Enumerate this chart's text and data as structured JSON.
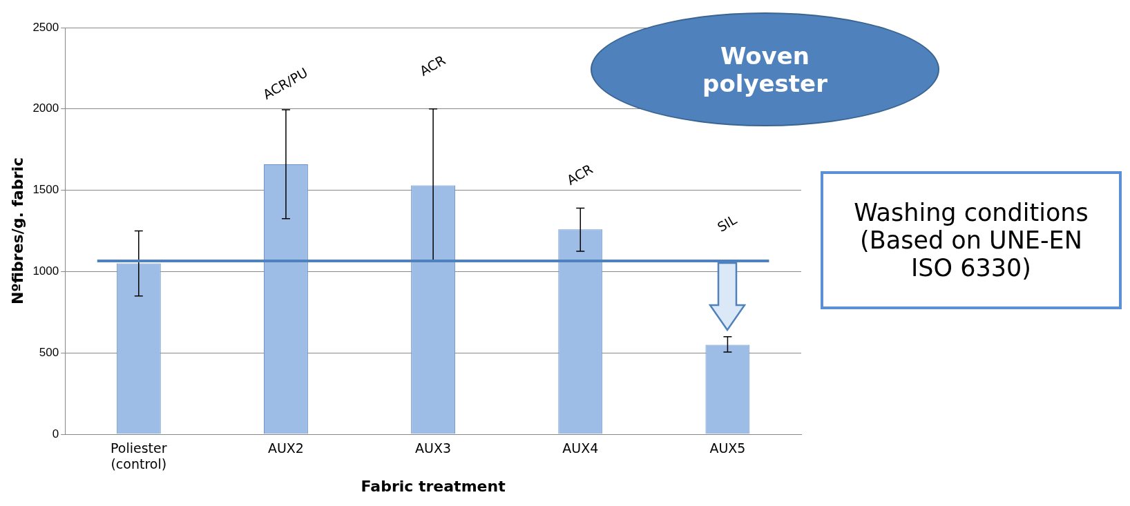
{
  "chart_data": {
    "type": "bar",
    "xlabel": "Fabric treatment",
    "ylabel": "Nºfibres/g. fabric",
    "categories": [
      "Poliester\n(control)",
      "AUX2",
      "AUX3",
      "AUX4",
      "AUX5"
    ],
    "values": [
      1050,
      1660,
      1530,
      1260,
      550
    ],
    "errors": [
      200,
      [
        1325,
        1995
      ],
      [
        1070,
        2000
      ],
      [
        1125,
        1390
      ],
      [
        505,
        600
      ]
    ],
    "color": "#9dbde6",
    "ylim": [
      0,
      2500
    ],
    "yticks": [
      0,
      500,
      1000,
      1500,
      2000,
      2500
    ],
    "grid": "y",
    "legend": false,
    "ref_lines": [
      {
        "axis": "y",
        "value": 1065,
        "color": "#4f81bd"
      }
    ],
    "annotations": [
      "ACR/PU",
      "ACR",
      "ACR",
      "SIL",
      "Woven\npolyester",
      "Washing conditions\n(Based on UNE-EN\nISO 6330)"
    ]
  }
}
